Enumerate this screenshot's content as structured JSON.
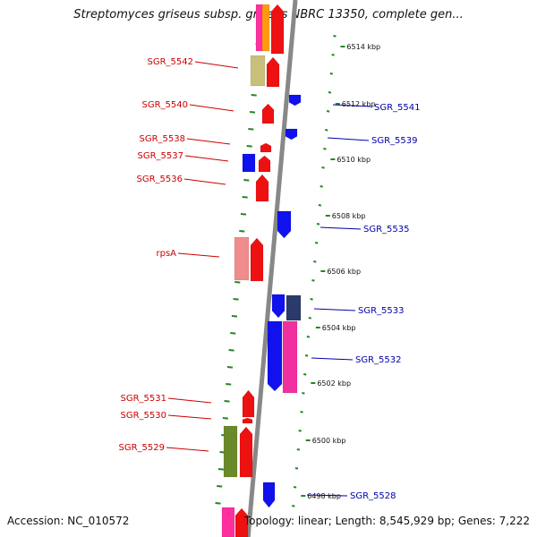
{
  "title": "Streptomyces griseus subsp. griseus NBRC 13350, complete gen...",
  "footer": {
    "accession": "Accession: NC_010572",
    "topology": "Topology: linear; Length: 8,545,929 bp; Genes: 7,222"
  },
  "colors": {
    "forward_gene": "#ee1111",
    "reverse_gene": "#1111ee",
    "label_forward": "#cc0000",
    "label_reverse": "#0000aa",
    "ticks": "#228822",
    "backbone": "#888888"
  },
  "scale": {
    "unit": "kbp",
    "ticks": [
      {
        "label": "6514 kbp"
      },
      {
        "label": "6512 kbp"
      },
      {
        "label": "6510 kbp"
      },
      {
        "label": "6508 kbp"
      },
      {
        "label": "6506 kbp"
      },
      {
        "label": "6504 kbp"
      },
      {
        "label": "6502 kbp"
      },
      {
        "label": "6500 kbp"
      },
      {
        "label": "6498 kbp"
      }
    ]
  },
  "labels_left": [
    {
      "text": "SGR_5542"
    },
    {
      "text": "SGR_5540"
    },
    {
      "text": "SGR_5538"
    },
    {
      "text": "SGR_5537"
    },
    {
      "text": "SGR_5536"
    },
    {
      "text": "rpsA"
    },
    {
      "text": "SGR_5531"
    },
    {
      "text": "SGR_5530"
    },
    {
      "text": "SGR_5529"
    }
  ],
  "labels_right": [
    {
      "text": "SGR_5541"
    },
    {
      "text": "SGR_5539"
    },
    {
      "text": "SGR_5535"
    },
    {
      "text": "SGR_5533"
    },
    {
      "text": "SGR_5532"
    },
    {
      "text": "SGR_5528"
    }
  ]
}
